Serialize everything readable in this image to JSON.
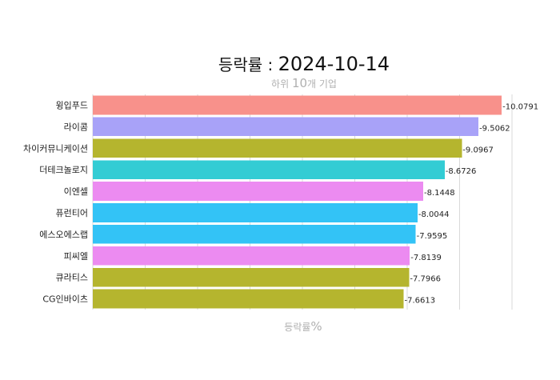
{
  "chart_data": {
    "type": "bar",
    "orientation": "horizontal",
    "title_prefix": "등락률 : ",
    "title_date": "2024-10-14",
    "subtitle_pre": "하위 ",
    "subtitle_num": "10",
    "subtitle_post": "개 기업",
    "xlabel_text": "등락률",
    "xlabel_unit": "%",
    "grid": true,
    "categories": [
      "윙입푸드",
      "라이콤",
      "차이커뮤니케이션",
      "더테크놀로지",
      "이엔셀",
      "퓨런티어",
      "에스오에스랩",
      "피씨엘",
      "큐라티스",
      "CG인바이츠"
    ],
    "values": [
      -10.0791,
      -9.5062,
      -9.0967,
      -8.6726,
      -8.1448,
      -8.0044,
      -7.9595,
      -7.8139,
      -7.7966,
      -7.6613
    ],
    "value_labels": [
      "-10.0791",
      "-9.5062",
      "-9.0967",
      "-8.6726",
      "-8.1448",
      "-8.0044",
      "-7.9595",
      "-7.8139",
      "-7.7966",
      "-7.6613"
    ],
    "colors": [
      "#F8918B",
      "#A8A2F8",
      "#B5B52E",
      "#33CCD4",
      "#EC8BF1",
      "#33C3F6",
      "#33C3F6",
      "#EC8BF1",
      "#B5B52E",
      "#B5B52E"
    ]
  }
}
